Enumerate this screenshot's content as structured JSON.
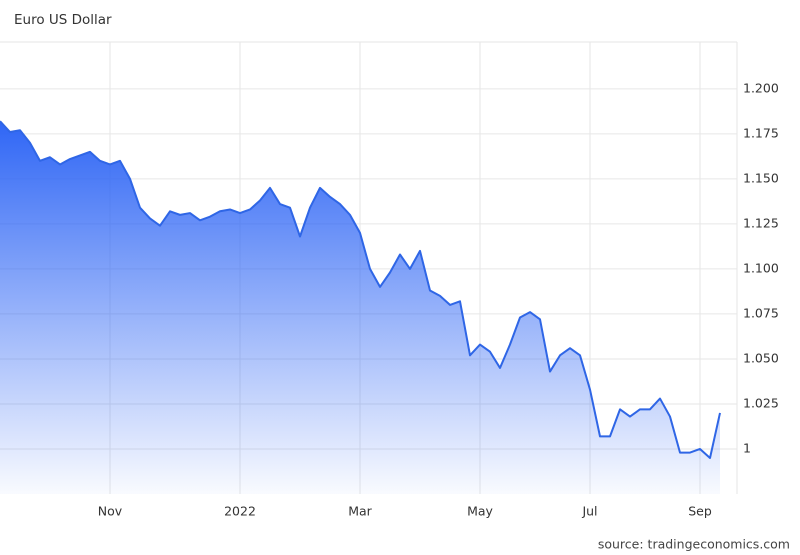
{
  "chart_data": {
    "type": "area",
    "title": "Euro US Dollar",
    "source": "source: tradingeconomics.com",
    "color": "#2f66e6",
    "grid": true,
    "categories": [
      null,
      null,
      null,
      null,
      null,
      null,
      null,
      null,
      null,
      null,
      null,
      "Nov",
      null,
      null,
      null,
      null,
      null,
      null,
      null,
      null,
      null,
      null,
      null,
      null,
      "2022",
      null,
      null,
      null,
      null,
      null,
      null,
      null,
      null,
      null,
      null,
      null,
      "Mar",
      null,
      null,
      null,
      null,
      null,
      null,
      null,
      null,
      null,
      null,
      null,
      "May",
      null,
      null,
      null,
      null,
      null,
      null,
      null,
      null,
      null,
      null,
      "Jul",
      null,
      null,
      null,
      null,
      null,
      null,
      null,
      null,
      null,
      null,
      "Sep",
      null,
      null
    ],
    "values": [
      1.182,
      1.176,
      1.177,
      1.17,
      1.16,
      1.162,
      1.158,
      1.161,
      1.163,
      1.165,
      1.16,
      1.158,
      1.16,
      1.15,
      1.134,
      1.128,
      1.124,
      1.132,
      1.13,
      1.131,
      1.127,
      1.129,
      1.132,
      1.133,
      1.131,
      1.133,
      1.138,
      1.145,
      1.136,
      1.134,
      1.118,
      1.134,
      1.145,
      1.14,
      1.136,
      1.13,
      1.12,
      1.1,
      1.09,
      1.098,
      1.108,
      1.1,
      1.11,
      1.088,
      1.085,
      1.08,
      1.082,
      1.052,
      1.058,
      1.054,
      1.045,
      1.058,
      1.073,
      1.076,
      1.072,
      1.043,
      1.052,
      1.056,
      1.052,
      1.033,
      1.007,
      1.007,
      1.022,
      1.018,
      1.022,
      1.022,
      1.028,
      1.018,
      0.998,
      0.998,
      1.0,
      0.995,
      1.02
    ],
    "ylim": [
      0.975,
      1.226
    ],
    "yticks": [
      1,
      1.025,
      {
        "value": 1.05,
        "label": "1.050"
      },
      1.075,
      {
        "value": 1.1,
        "label": "1.100"
      },
      1.125,
      {
        "value": 1.15,
        "label": "1.150"
      },
      1.175,
      {
        "value": 1.2,
        "label": "1.200"
      }
    ]
  }
}
